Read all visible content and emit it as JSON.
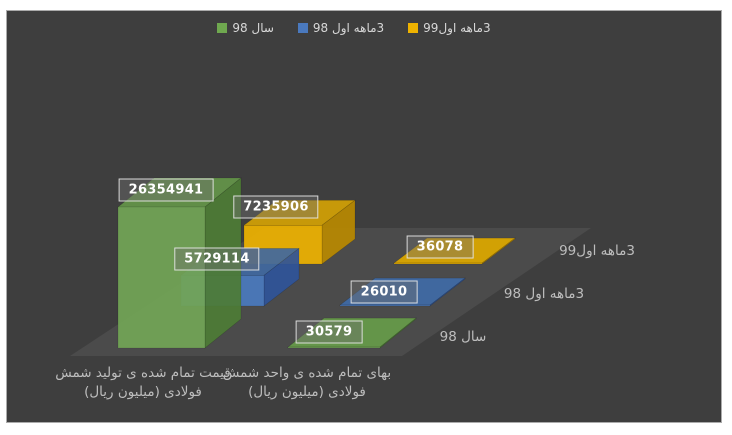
{
  "chart_data": {
    "type": "bar",
    "projection": "3d",
    "title": "",
    "categories": [
      "قیمت تمام شده ی تولید شمش\nفولادی (میلیون ریال)",
      "بهای تمام شده ی واحد شمش\nفولادی (میلیون ریال)"
    ],
    "series": [
      {
        "name": "سال 98",
        "values": [
          26354941,
          30579
        ],
        "colors": {
          "legend": "#6fa84f",
          "front": "#72a556",
          "top": "#649549",
          "side": "#4d7c35"
        }
      },
      {
        "name": "3ماهه اول 98",
        "values": [
          5729114,
          26010
        ],
        "colors": {
          "legend": "#4a79be",
          "front": "#4a79be",
          "top": "#40689f",
          "side": "#2f5499"
        }
      },
      {
        "name": "3ماهه اول99",
        "values": [
          7235906,
          36078
        ],
        "colors": {
          "legend": "#eeb200",
          "front": "#eeb200",
          "top": "#d2a104",
          "side": "#b98900"
        }
      }
    ],
    "value_axis": {
      "visible": false,
      "max": 26354941
    },
    "legend_position": "top",
    "background_color": "#3e3e3e",
    "floor_color": "#4b4b4b"
  }
}
